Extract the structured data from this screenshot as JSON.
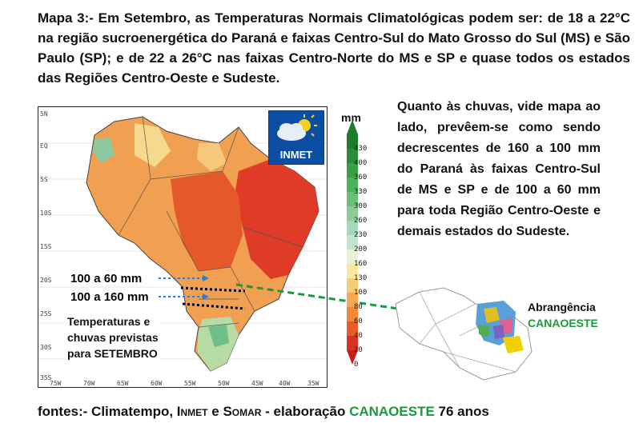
{
  "headline": "Mapa 3:- Em Setembro, as Temperaturas Normais Climatológicas podem ser: de 18 a 22°C na região sucroenergética do Paraná e faixas Centro-Sul do Mato Grosso do Sul (MS) e São Paulo (SP); e de 22 a 26°C nas faixas Centro-Norte do MS e SP e quase todos os estados das Regiões Centro-Oeste e Sudeste.",
  "map": {
    "lat_labels": [
      "5N",
      "EQ",
      "5S",
      "10S",
      "15S",
      "20S",
      "25S",
      "30S",
      "35S"
    ],
    "lon_labels": [
      "75W",
      "70W",
      "65W",
      "60W",
      "55W",
      "50W",
      "45W",
      "40W",
      "35W"
    ],
    "logo_text": "INMET",
    "annotation_60": "100 a 60 mm",
    "annotation_160": "100 a 160 mm",
    "caption": [
      "Temperaturas e",
      "chuvas previstas",
      "para SETEMBRO"
    ]
  },
  "scale": {
    "unit": "mm",
    "levels": [
      "430",
      "400",
      "360",
      "330",
      "300",
      "260",
      "230",
      "200",
      "160",
      "130",
      "100",
      "80",
      "60",
      "40",
      "20",
      "0"
    ]
  },
  "side_text": "Quanto às chuvas, vide mapa ao lado, prevêem-se como sendo decrescentes de 160 a 100 mm do Paraná às faixas Centro-Sul de MS e SP e de 100 a 60 mm para toda Região Centro-Oeste e demais estados do Sudeste.",
  "abrangencia": {
    "label": "Abrangência",
    "brand": "CANAOESTE"
  },
  "footer": {
    "prefix": "fontes:- Climatempo, ",
    "inmet": "Inmet",
    "and": " e ",
    "somar": "Somar",
    "middle": " - elaboração ",
    "brand": "CANAOESTE",
    "suffix": " 76 anos"
  },
  "colors": {
    "brand_green": "#1a9a3a",
    "arrow_green": "#1a9a3a",
    "arrow_blue": "#2a7fd4"
  }
}
